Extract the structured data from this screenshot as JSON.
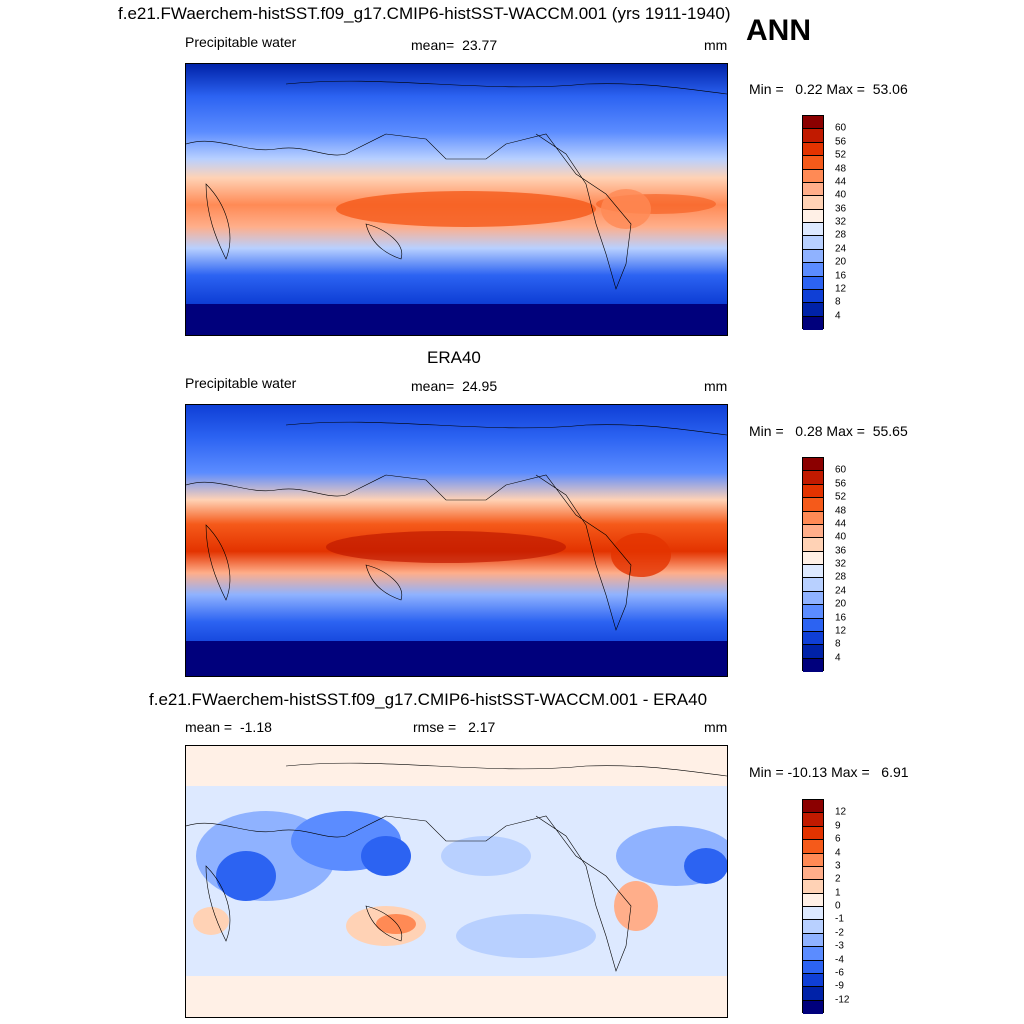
{
  "header": {
    "title": "f.e21.FWaerchem-histSST.f09_g17.CMIP6-histSST-WACCM.001 (yrs 1911-1940)",
    "season": "ANN"
  },
  "panel1": {
    "left": "Precipitable water",
    "center_label": "mean=",
    "center_value": "23.77",
    "right": "mm",
    "minmax": "Min =   0.22 Max =  53.06"
  },
  "panel2": {
    "title": "ERA40",
    "left": "Precipitable water",
    "center_label": "mean=",
    "center_value": "24.95",
    "right": "mm",
    "minmax": "Min =   0.28 Max =  55.65"
  },
  "panel3": {
    "title": "f.e21.FWaerchem-histSST.f09_g17.CMIP6-histSST-WACCM.001 - ERA40",
    "left_label": "mean =",
    "left_value": "-1.18",
    "center_label": "rmse =",
    "center_value": "2.17",
    "right": "mm",
    "minmax": "Min = -10.13 Max =   6.91"
  },
  "colorbar_abs": {
    "ticks": [
      "60",
      "56",
      "52",
      "48",
      "44",
      "40",
      "36",
      "32",
      "28",
      "24",
      "20",
      "16",
      "12",
      "8",
      "4"
    ],
    "colors": [
      "#8b0000",
      "#c11a00",
      "#e33300",
      "#f55a1a",
      "#ff8a55",
      "#ffae8a",
      "#ffd2b5",
      "#fff0e6",
      "#dde9ff",
      "#b8d0ff",
      "#8fb2ff",
      "#5b8cff",
      "#2c63f2",
      "#0f3fd6",
      "#0022a8",
      "#00007c"
    ]
  },
  "colorbar_diff": {
    "ticks": [
      "12",
      "9",
      "6",
      "4",
      "3",
      "2",
      "1",
      "0",
      "-1",
      "-2",
      "-3",
      "-4",
      "-6",
      "-9",
      "-12"
    ],
    "colors": [
      "#8b0000",
      "#c11a00",
      "#e33300",
      "#f55a1a",
      "#ff8a55",
      "#ffae8a",
      "#ffd2b5",
      "#fff0e6",
      "#dde9ff",
      "#b8d0ff",
      "#8fb2ff",
      "#5b8cff",
      "#2c63f2",
      "#0f3fd6",
      "#0022a8",
      "#00007c"
    ]
  },
  "chart_data": [
    {
      "type": "heatmap",
      "title": "f.e21.FWaerchem-histSST.f09_g17.CMIP6-histSST-WACCM.001 (yrs 1911-1940)",
      "variable": "Precipitable water",
      "units": "mm",
      "mean": 23.77,
      "min": 0.22,
      "max": 53.06,
      "color_levels": [
        4,
        8,
        12,
        16,
        20,
        24,
        28,
        32,
        36,
        40,
        44,
        48,
        52,
        56,
        60
      ]
    },
    {
      "type": "heatmap",
      "title": "ERA40",
      "variable": "Precipitable water",
      "units": "mm",
      "mean": 24.95,
      "min": 0.28,
      "max": 55.65,
      "color_levels": [
        4,
        8,
        12,
        16,
        20,
        24,
        28,
        32,
        36,
        40,
        44,
        48,
        52,
        56,
        60
      ]
    },
    {
      "type": "heatmap",
      "title": "f.e21.FWaerchem-histSST.f09_g17.CMIP6-histSST-WACCM.001 - ERA40",
      "units": "mm",
      "mean": -1.18,
      "rmse": 2.17,
      "min": -10.13,
      "max": 6.91,
      "color_levels": [
        -12,
        -9,
        -6,
        -4,
        -3,
        -2,
        -1,
        0,
        1,
        2,
        3,
        4,
        6,
        9,
        12
      ]
    }
  ]
}
